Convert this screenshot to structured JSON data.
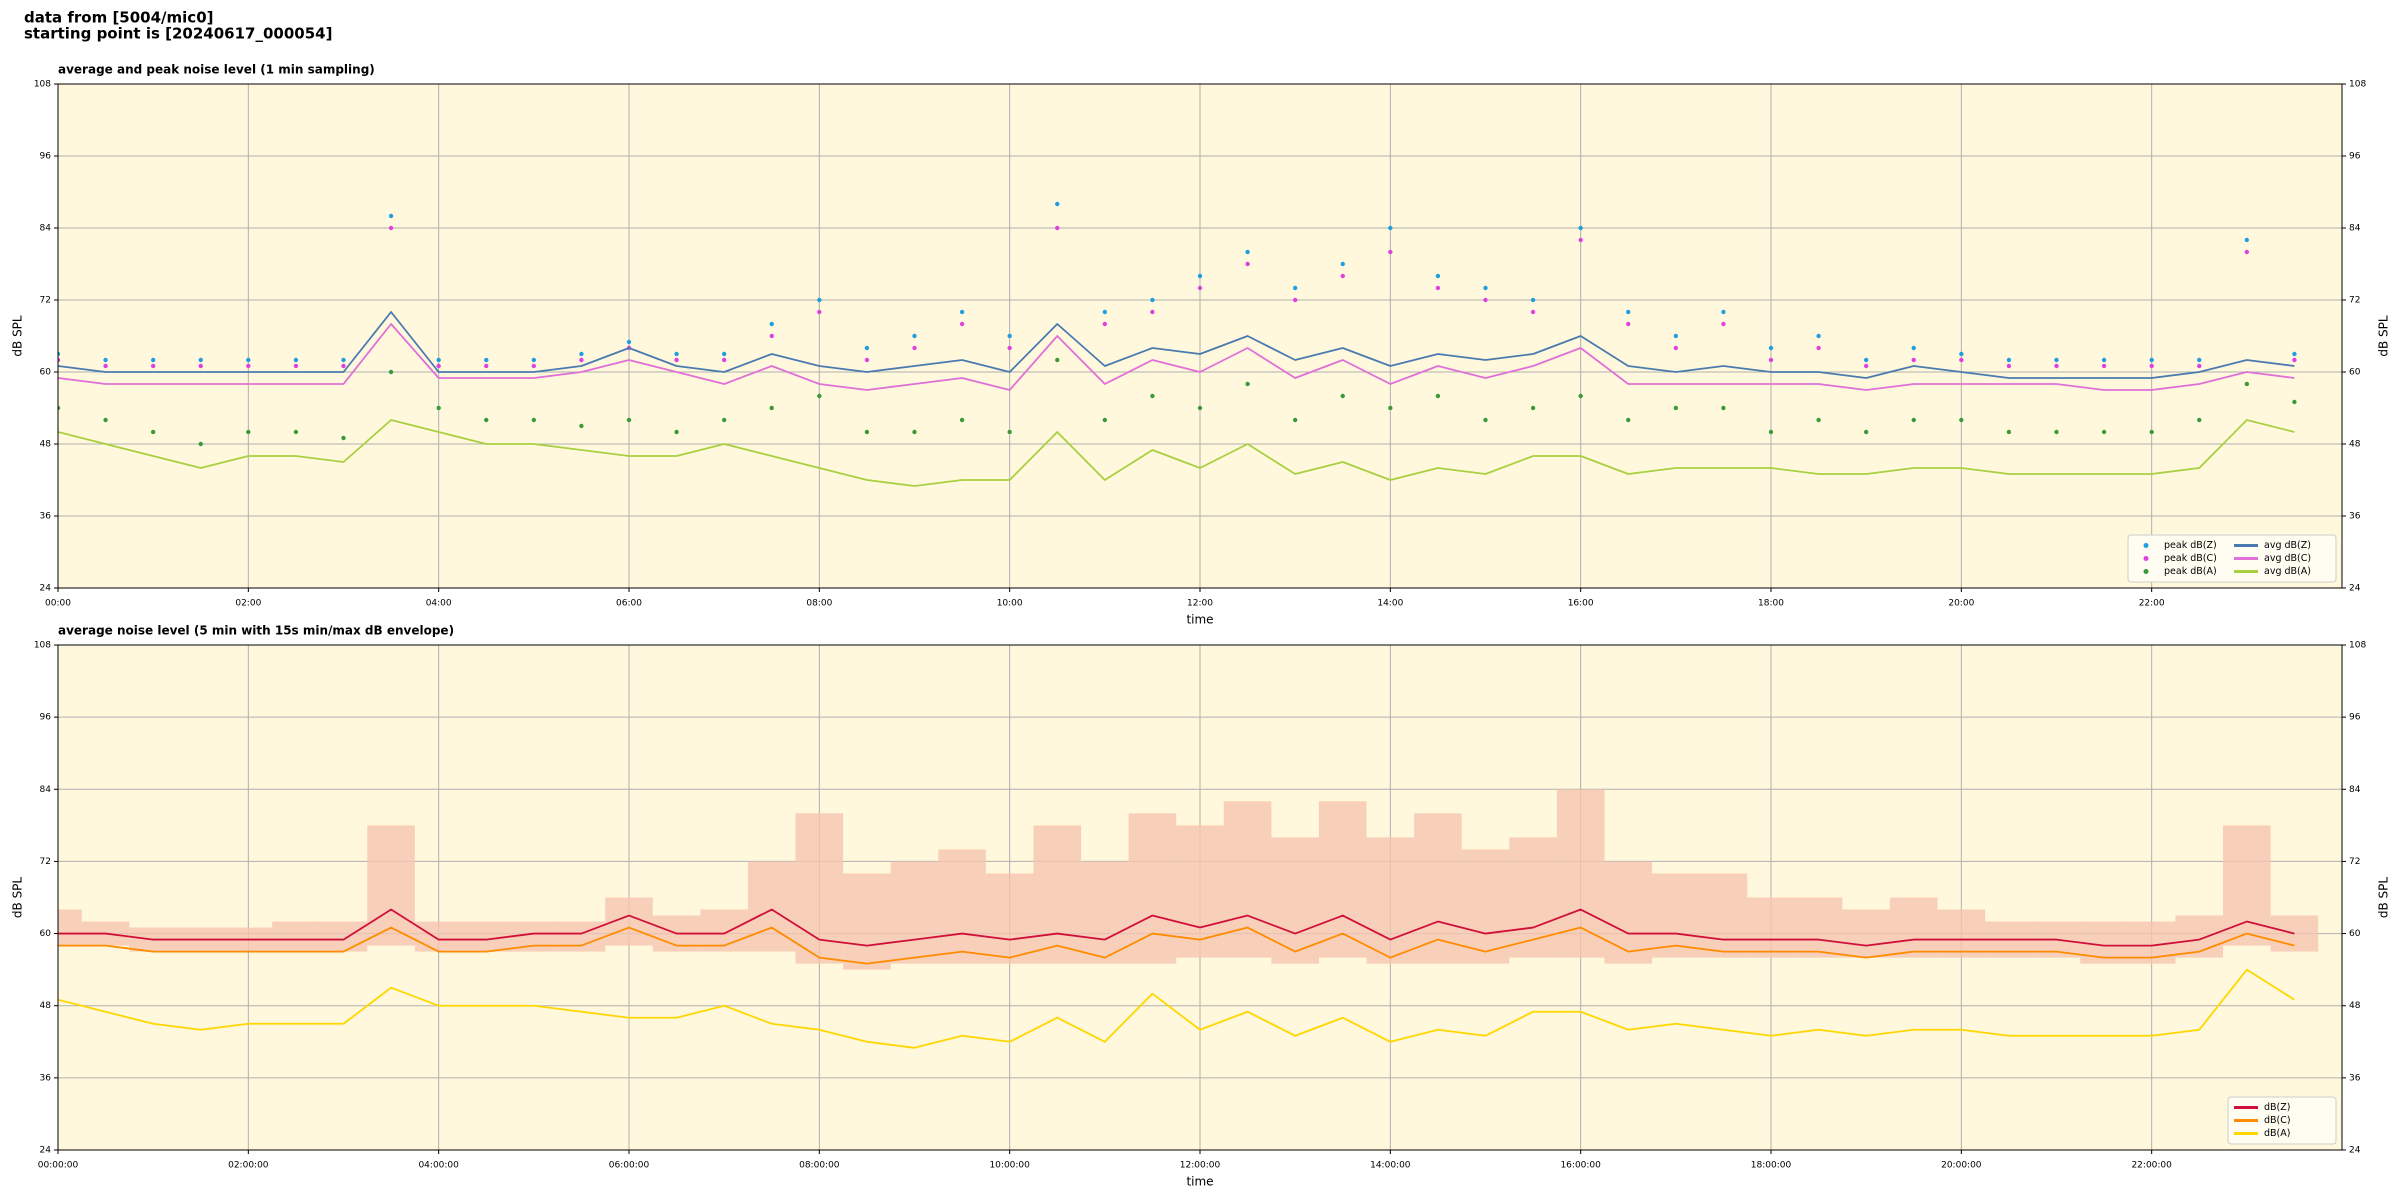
{
  "header": {
    "line1": "data from [5004/mic0]",
    "line2": "starting point is [20240617_000054]"
  },
  "chart_data": [
    {
      "type": "line",
      "title": "average and peak noise level (1 min sampling)",
      "xlabel": "time",
      "ylabel": "dB SPL",
      "xlim": [
        0,
        24
      ],
      "ylim": [
        24,
        108
      ],
      "yticks": [
        24,
        36,
        48,
        60,
        72,
        84,
        96,
        108
      ],
      "xticks": [
        {
          "value": 0,
          "label": "00:00"
        },
        {
          "value": 2,
          "label": "02:00"
        },
        {
          "value": 4,
          "label": "04:00"
        },
        {
          "value": 6,
          "label": "06:00"
        },
        {
          "value": 8,
          "label": "08:00"
        },
        {
          "value": 10,
          "label": "10:00"
        },
        {
          "value": 12,
          "label": "12:00"
        },
        {
          "value": 14,
          "label": "14:00"
        },
        {
          "value": 16,
          "label": "16:00"
        },
        {
          "value": 18,
          "label": "18:00"
        },
        {
          "value": 20,
          "label": "20:00"
        },
        {
          "value": 22,
          "label": "22:00"
        }
      ],
      "grid": true,
      "legend": "lower right",
      "legend_columns": 2,
      "x": [
        0,
        0.5,
        1,
        1.5,
        2,
        2.5,
        3,
        3.5,
        4,
        4.5,
        5,
        5.5,
        6,
        6.5,
        7,
        7.5,
        8,
        8.5,
        9,
        9.5,
        10,
        10.5,
        11,
        11.5,
        12,
        12.5,
        13,
        13.5,
        14,
        14.5,
        15,
        15.5,
        16,
        16.5,
        17,
        17.5,
        18,
        18.5,
        19,
        19.5,
        20,
        20.5,
        21,
        21.5,
        22,
        22.5,
        23,
        23.5
      ],
      "series": [
        {
          "name": "peak dB(Z)",
          "type": "scatter",
          "color": "#1f9ee0",
          "values": [
            63,
            62,
            62,
            62,
            62,
            62,
            62,
            86,
            62,
            62,
            62,
            63,
            65,
            63,
            63,
            68,
            72,
            64,
            66,
            70,
            66,
            88,
            70,
            72,
            76,
            80,
            74,
            78,
            84,
            76,
            74,
            72,
            84,
            70,
            66,
            70,
            64,
            66,
            62,
            64,
            63,
            62,
            62,
            62,
            62,
            62,
            82,
            63
          ]
        },
        {
          "name": "peak dB(C)",
          "type": "scatter",
          "color": "#e040e0",
          "values": [
            62,
            61,
            61,
            61,
            61,
            61,
            61,
            84,
            61,
            61,
            61,
            62,
            64,
            62,
            62,
            66,
            70,
            62,
            64,
            68,
            64,
            84,
            68,
            70,
            74,
            78,
            72,
            76,
            80,
            74,
            72,
            70,
            82,
            68,
            64,
            68,
            62,
            64,
            61,
            62,
            62,
            61,
            61,
            61,
            61,
            61,
            80,
            62
          ]
        },
        {
          "name": "peak dB(A)",
          "type": "scatter",
          "color": "#3a9a3a",
          "values": [
            54,
            52,
            50,
            48,
            50,
            50,
            49,
            60,
            54,
            52,
            52,
            51,
            52,
            50,
            52,
            54,
            56,
            50,
            50,
            52,
            50,
            62,
            52,
            56,
            54,
            58,
            52,
            56,
            54,
            56,
            52,
            54,
            56,
            52,
            54,
            54,
            50,
            52,
            50,
            52,
            52,
            50,
            50,
            50,
            50,
            52,
            58,
            55
          ]
        },
        {
          "name": "avg dB(Z)",
          "type": "line",
          "color": "#4a7bb0",
          "values": [
            61,
            60,
            60,
            60,
            60,
            60,
            60,
            70,
            60,
            60,
            60,
            61,
            64,
            61,
            60,
            63,
            61,
            60,
            61,
            62,
            60,
            68,
            61,
            64,
            63,
            66,
            62,
            64,
            61,
            63,
            62,
            63,
            66,
            61,
            60,
            61,
            60,
            60,
            59,
            61,
            60,
            59,
            59,
            59,
            59,
            60,
            62,
            61
          ]
        },
        {
          "name": "avg dB(C)",
          "type": "line",
          "color": "#e070d8",
          "values": [
            59,
            58,
            58,
            58,
            58,
            58,
            58,
            68,
            59,
            59,
            59,
            60,
            62,
            60,
            58,
            61,
            58,
            57,
            58,
            59,
            57,
            66,
            58,
            62,
            60,
            64,
            59,
            62,
            58,
            61,
            59,
            61,
            64,
            58,
            58,
            58,
            58,
            58,
            57,
            58,
            58,
            58,
            58,
            57,
            57,
            58,
            60,
            59
          ]
        },
        {
          "name": "avg dB(A)",
          "type": "line",
          "color": "#a8d040",
          "values": [
            50,
            48,
            46,
            44,
            46,
            46,
            45,
            52,
            50,
            48,
            48,
            47,
            46,
            46,
            48,
            46,
            44,
            42,
            41,
            42,
            42,
            50,
            42,
            47,
            44,
            48,
            43,
            45,
            42,
            44,
            43,
            46,
            46,
            43,
            44,
            44,
            44,
            43,
            43,
            44,
            44,
            43,
            43,
            43,
            43,
            44,
            52,
            50
          ]
        }
      ]
    },
    {
      "type": "line",
      "title": "average noise level (5 min with 15s min/max dB envelope)",
      "xlabel": "time",
      "ylabel": "dB SPL",
      "xlim": [
        0,
        24
      ],
      "ylim": [
        24,
        108
      ],
      "yticks": [
        24,
        36,
        48,
        60,
        72,
        84,
        96,
        108
      ],
      "xticks": [
        {
          "value": 0,
          "label": "00:00:00"
        },
        {
          "value": 2,
          "label": "02:00:00"
        },
        {
          "value": 4,
          "label": "04:00:00"
        },
        {
          "value": 6,
          "label": "06:00:00"
        },
        {
          "value": 8,
          "label": "08:00:00"
        },
        {
          "value": 10,
          "label": "10:00:00"
        },
        {
          "value": 12,
          "label": "12:00:00"
        },
        {
          "value": 14,
          "label": "14:00:00"
        },
        {
          "value": 16,
          "label": "16:00:00"
        },
        {
          "value": 18,
          "label": "18:00:00"
        },
        {
          "value": 20,
          "label": "20:00:00"
        },
        {
          "value": 22,
          "label": "22:00:00"
        }
      ],
      "grid": true,
      "legend": "lower right",
      "legend_columns": 1,
      "x": [
        0,
        0.5,
        1,
        1.5,
        2,
        2.5,
        3,
        3.5,
        4,
        4.5,
        5,
        5.5,
        6,
        6.5,
        7,
        7.5,
        8,
        8.5,
        9,
        9.5,
        10,
        10.5,
        11,
        11.5,
        12,
        12.5,
        13,
        13.5,
        14,
        14.5,
        15,
        15.5,
        16,
        16.5,
        17,
        17.5,
        18,
        18.5,
        19,
        19.5,
        20,
        20.5,
        21,
        21.5,
        22,
        22.5,
        23,
        23.5
      ],
      "envelope": {
        "color": "#f6c4b0",
        "max": [
          64,
          62,
          61,
          61,
          61,
          62,
          62,
          78,
          62,
          62,
          62,
          62,
          66,
          63,
          64,
          72,
          80,
          70,
          72,
          74,
          70,
          78,
          72,
          80,
          78,
          82,
          76,
          82,
          76,
          80,
          74,
          76,
          84,
          72,
          70,
          70,
          66,
          66,
          64,
          66,
          64,
          62,
          62,
          62,
          62,
          63,
          78,
          63
        ],
        "min": [
          58,
          58,
          57,
          57,
          57,
          57,
          57,
          58,
          57,
          57,
          57,
          57,
          58,
          57,
          57,
          57,
          55,
          54,
          55,
          55,
          55,
          55,
          55,
          55,
          56,
          56,
          55,
          56,
          55,
          55,
          55,
          56,
          56,
          55,
          56,
          56,
          56,
          56,
          56,
          56,
          56,
          56,
          56,
          55,
          55,
          56,
          58,
          57
        ]
      },
      "series": [
        {
          "name": "dB(Z)",
          "type": "line",
          "color": "#d0103a",
          "values": [
            60,
            60,
            59,
            59,
            59,
            59,
            59,
            64,
            59,
            59,
            60,
            60,
            63,
            60,
            60,
            64,
            59,
            58,
            59,
            60,
            59,
            60,
            59,
            63,
            61,
            63,
            60,
            63,
            59,
            62,
            60,
            61,
            64,
            60,
            60,
            59,
            59,
            59,
            58,
            59,
            59,
            59,
            59,
            58,
            58,
            59,
            62,
            60
          ]
        },
        {
          "name": "dB(C)",
          "type": "line",
          "color": "#ff8c00",
          "values": [
            58,
            58,
            57,
            57,
            57,
            57,
            57,
            61,
            57,
            57,
            58,
            58,
            61,
            58,
            58,
            61,
            56,
            55,
            56,
            57,
            56,
            58,
            56,
            60,
            59,
            61,
            57,
            60,
            56,
            59,
            57,
            59,
            61,
            57,
            58,
            57,
            57,
            57,
            56,
            57,
            57,
            57,
            57,
            56,
            56,
            57,
            60,
            58
          ]
        },
        {
          "name": "dB(A)",
          "type": "line",
          "color": "#ffd700",
          "values": [
            49,
            47,
            45,
            44,
            45,
            45,
            45,
            51,
            48,
            48,
            48,
            47,
            46,
            46,
            48,
            45,
            44,
            42,
            41,
            43,
            42,
            46,
            42,
            50,
            44,
            47,
            43,
            46,
            42,
            44,
            43,
            47,
            47,
            44,
            45,
            44,
            43,
            44,
            43,
            44,
            44,
            43,
            43,
            43,
            43,
            44,
            54,
            49
          ]
        }
      ]
    }
  ]
}
